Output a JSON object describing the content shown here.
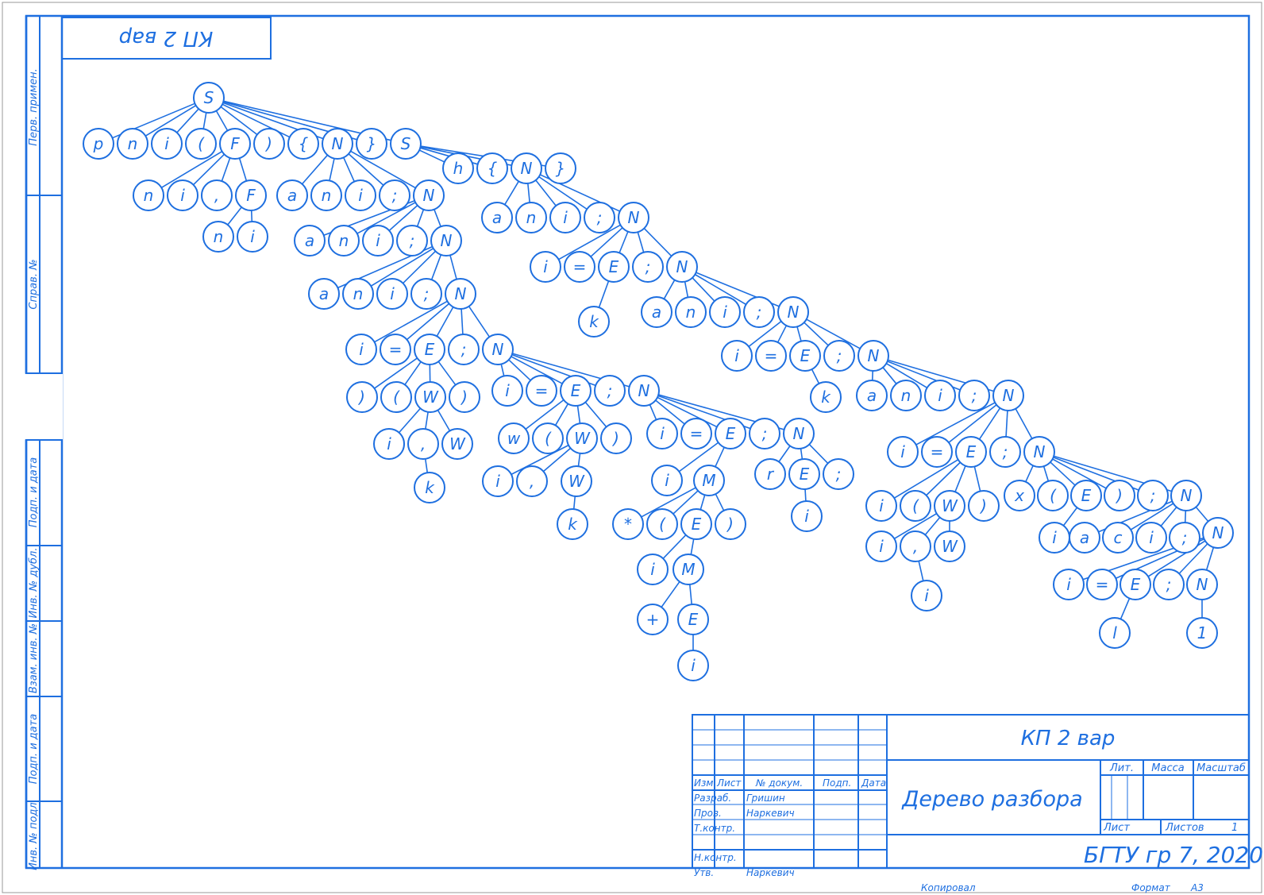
{
  "stamp": "КП 2 вар",
  "side_labels": [
    "Перв. примен.",
    "Справ. №",
    "Подп. и дата",
    "Инв. № дубл.",
    "Взам. инв. №",
    "Подп. и дата",
    "Инв. № подл."
  ],
  "title_block": {
    "doc_code": "КП 2 вар",
    "doc_name": "Дерево разбора",
    "org": "БГТУ гр 7, 2020",
    "col_headers": {
      "izm": "Изм.",
      "list": "Лист",
      "ndoc": "№ докум.",
      "podp": "Подп.",
      "data": "Дата"
    },
    "roles": [
      {
        "role": "Разраб.",
        "name": "Гришин"
      },
      {
        "role": "Пров.",
        "name": "Наркевич"
      },
      {
        "role": "Т.контр.",
        "name": ""
      },
      {
        "role": "",
        "name": ""
      },
      {
        "role": "Н.контр.",
        "name": ""
      },
      {
        "role": "Утв.",
        "name": "Наркевич"
      }
    ],
    "lit": "Лит.",
    "massa": "Масса",
    "masshtab": "Масштаб",
    "list_lbl": "Лист",
    "listov_lbl": "Листов",
    "listov_val": "1",
    "kopiroval": "Копировал",
    "format_lbl": "Формат",
    "format_val": "А3"
  },
  "tree": {
    "nodes": [
      {
        "id": "S0",
        "t": "S"
      },
      {
        "id": "a1",
        "t": "p"
      },
      {
        "id": "a2",
        "t": "n"
      },
      {
        "id": "a3",
        "t": "i"
      },
      {
        "id": "a4",
        "t": "("
      },
      {
        "id": "a5",
        "t": "F"
      },
      {
        "id": "a6",
        "t": ")"
      },
      {
        "id": "a7",
        "t": "{"
      },
      {
        "id": "a8",
        "t": "N"
      },
      {
        "id": "a9",
        "t": "}"
      },
      {
        "id": "a10",
        "t": "S"
      },
      {
        "id": "b1",
        "t": "n"
      },
      {
        "id": "b2",
        "t": "i"
      },
      {
        "id": "b3",
        "t": ","
      },
      {
        "id": "b4",
        "t": "F"
      },
      {
        "id": "b5",
        "t": "n"
      },
      {
        "id": "b6",
        "t": "i"
      },
      {
        "id": "c1",
        "t": "a"
      },
      {
        "id": "c2",
        "t": "n"
      },
      {
        "id": "c3",
        "t": "i"
      },
      {
        "id": "c4",
        "t": ";"
      },
      {
        "id": "c5",
        "t": "N"
      },
      {
        "id": "d1",
        "t": "a"
      },
      {
        "id": "d2",
        "t": "n"
      },
      {
        "id": "d3",
        "t": "i"
      },
      {
        "id": "d4",
        "t": ";"
      },
      {
        "id": "d5",
        "t": "N"
      },
      {
        "id": "e1",
        "t": "a"
      },
      {
        "id": "e2",
        "t": "n"
      },
      {
        "id": "e3",
        "t": "i"
      },
      {
        "id": "e4",
        "t": ";"
      },
      {
        "id": "e5",
        "t": "N"
      },
      {
        "id": "f1",
        "t": "i"
      },
      {
        "id": "f2",
        "t": "="
      },
      {
        "id": "f3",
        "t": "E"
      },
      {
        "id": "f4",
        "t": ";"
      },
      {
        "id": "f5",
        "t": "N"
      },
      {
        "id": "g1",
        "t": ")"
      },
      {
        "id": "g2",
        "t": "("
      },
      {
        "id": "g3",
        "t": "W"
      },
      {
        "id": "g4",
        "t": ")"
      },
      {
        "id": "g5",
        "t": "i"
      },
      {
        "id": "g6",
        "t": ","
      },
      {
        "id": "g7",
        "t": "W"
      },
      {
        "id": "g8",
        "t": "k"
      },
      {
        "id": "h1",
        "t": "i"
      },
      {
        "id": "h2",
        "t": "="
      },
      {
        "id": "h3",
        "t": "E"
      },
      {
        "id": "h4",
        "t": ";"
      },
      {
        "id": "h5",
        "t": "N"
      },
      {
        "id": "i1",
        "t": "w"
      },
      {
        "id": "i2",
        "t": "("
      },
      {
        "id": "i3",
        "t": "W"
      },
      {
        "id": "i4",
        "t": ")"
      },
      {
        "id": "i5",
        "t": "i"
      },
      {
        "id": "i6",
        "t": ","
      },
      {
        "id": "i7",
        "t": "W"
      },
      {
        "id": "i8",
        "t": "k"
      },
      {
        "id": "j1",
        "t": "i"
      },
      {
        "id": "j2",
        "t": "="
      },
      {
        "id": "j3",
        "t": "E"
      },
      {
        "id": "j4",
        "t": ";"
      },
      {
        "id": "j5",
        "t": "N"
      },
      {
        "id": "k1",
        "t": "i"
      },
      {
        "id": "k2",
        "t": "M"
      },
      {
        "id": "k3",
        "t": "*"
      },
      {
        "id": "k4",
        "t": "("
      },
      {
        "id": "k5",
        "t": "E"
      },
      {
        "id": "k6",
        "t": ")"
      },
      {
        "id": "k7",
        "t": "i"
      },
      {
        "id": "k8",
        "t": "M"
      },
      {
        "id": "k9",
        "t": "+"
      },
      {
        "id": "k10",
        "t": "E"
      },
      {
        "id": "k11",
        "t": "i"
      },
      {
        "id": "l1",
        "t": "r"
      },
      {
        "id": "l2",
        "t": "E"
      },
      {
        "id": "l3",
        "t": ";"
      },
      {
        "id": "l4",
        "t": "i"
      },
      {
        "id": "m1",
        "t": "h"
      },
      {
        "id": "m2",
        "t": "{"
      },
      {
        "id": "m3",
        "t": "N"
      },
      {
        "id": "m4",
        "t": "}"
      },
      {
        "id": "n1",
        "t": "a"
      },
      {
        "id": "n2",
        "t": "n"
      },
      {
        "id": "n3",
        "t": "i"
      },
      {
        "id": "n4",
        "t": ";"
      },
      {
        "id": "n5",
        "t": "N"
      },
      {
        "id": "o1",
        "t": "i"
      },
      {
        "id": "o2",
        "t": "="
      },
      {
        "id": "o3",
        "t": "E"
      },
      {
        "id": "o4",
        "t": ";"
      },
      {
        "id": "o5",
        "t": "N"
      },
      {
        "id": "o6",
        "t": "k"
      },
      {
        "id": "p1",
        "t": "a"
      },
      {
        "id": "p2",
        "t": "n"
      },
      {
        "id": "p3",
        "t": "i"
      },
      {
        "id": "p4",
        "t": ";"
      },
      {
        "id": "p5",
        "t": "N"
      },
      {
        "id": "q1",
        "t": "i"
      },
      {
        "id": "q2",
        "t": "="
      },
      {
        "id": "q3",
        "t": "E"
      },
      {
        "id": "q4",
        "t": ";"
      },
      {
        "id": "q5",
        "t": "N"
      },
      {
        "id": "q6",
        "t": "k"
      },
      {
        "id": "r1",
        "t": "a"
      },
      {
        "id": "r2",
        "t": "n"
      },
      {
        "id": "r3",
        "t": "i"
      },
      {
        "id": "r4",
        "t": ";"
      },
      {
        "id": "r5",
        "t": "N"
      },
      {
        "id": "s1",
        "t": "i"
      },
      {
        "id": "s2",
        "t": "="
      },
      {
        "id": "s3",
        "t": "E"
      },
      {
        "id": "s4",
        "t": ";"
      },
      {
        "id": "s5",
        "t": "N"
      },
      {
        "id": "t1",
        "t": "i"
      },
      {
        "id": "t2",
        "t": "("
      },
      {
        "id": "t3",
        "t": "W"
      },
      {
        "id": "t4",
        "t": ")"
      },
      {
        "id": "t5",
        "t": "i"
      },
      {
        "id": "t6",
        "t": ","
      },
      {
        "id": "t7",
        "t": "W"
      },
      {
        "id": "t8",
        "t": "i"
      },
      {
        "id": "u1",
        "t": "x"
      },
      {
        "id": "u2",
        "t": "("
      },
      {
        "id": "u3",
        "t": "E"
      },
      {
        "id": "u4",
        "t": ")"
      },
      {
        "id": "u5",
        "t": ";"
      },
      {
        "id": "u6",
        "t": "N"
      },
      {
        "id": "u7",
        "t": "i"
      },
      {
        "id": "v1",
        "t": "a"
      },
      {
        "id": "v2",
        "t": "c"
      },
      {
        "id": "v3",
        "t": "i"
      },
      {
        "id": "v4",
        "t": ";"
      },
      {
        "id": "v5",
        "t": "N"
      },
      {
        "id": "w1",
        "t": "i"
      },
      {
        "id": "w2",
        "t": "="
      },
      {
        "id": "w3",
        "t": "E"
      },
      {
        "id": "w4",
        "t": ";"
      },
      {
        "id": "w5",
        "t": "N"
      },
      {
        "id": "w6",
        "t": "l"
      },
      {
        "id": "w7",
        "t": "1"
      }
    ],
    "edges": [
      [
        "S0",
        "a1"
      ],
      [
        "S0",
        "a2"
      ],
      [
        "S0",
        "a3"
      ],
      [
        "S0",
        "a4"
      ],
      [
        "S0",
        "a5"
      ],
      [
        "S0",
        "a6"
      ],
      [
        "S0",
        "a7"
      ],
      [
        "S0",
        "a8"
      ],
      [
        "S0",
        "a9"
      ],
      [
        "S0",
        "a10"
      ],
      [
        "a5",
        "b1"
      ],
      [
        "a5",
        "b2"
      ],
      [
        "a5",
        "b3"
      ],
      [
        "a5",
        "b4"
      ],
      [
        "b4",
        "b5"
      ],
      [
        "b4",
        "b6"
      ],
      [
        "a8",
        "c1"
      ],
      [
        "a8",
        "c2"
      ],
      [
        "a8",
        "c3"
      ],
      [
        "a8",
        "c4"
      ],
      [
        "a8",
        "c5"
      ],
      [
        "c5",
        "d1"
      ],
      [
        "c5",
        "d2"
      ],
      [
        "c5",
        "d3"
      ],
      [
        "c5",
        "d4"
      ],
      [
        "c5",
        "d5"
      ],
      [
        "d5",
        "e1"
      ],
      [
        "d5",
        "e2"
      ],
      [
        "d5",
        "e3"
      ],
      [
        "d5",
        "e4"
      ],
      [
        "d5",
        "e5"
      ],
      [
        "e5",
        "f1"
      ],
      [
        "e5",
        "f2"
      ],
      [
        "e5",
        "f3"
      ],
      [
        "e5",
        "f4"
      ],
      [
        "e5",
        "f5"
      ],
      [
        "f3",
        "g1"
      ],
      [
        "f3",
        "g2"
      ],
      [
        "f3",
        "g3"
      ],
      [
        "f3",
        "g4"
      ],
      [
        "g3",
        "g5"
      ],
      [
        "g3",
        "g6"
      ],
      [
        "g3",
        "g7"
      ],
      [
        "g6",
        "g8"
      ],
      [
        "f5",
        "h1"
      ],
      [
        "f5",
        "h2"
      ],
      [
        "f5",
        "h3"
      ],
      [
        "f5",
        "h4"
      ],
      [
        "f5",
        "h5"
      ],
      [
        "h3",
        "i1"
      ],
      [
        "h3",
        "i2"
      ],
      [
        "h3",
        "i3"
      ],
      [
        "h3",
        "i4"
      ],
      [
        "i3",
        "i5"
      ],
      [
        "i3",
        "i6"
      ],
      [
        "i3",
        "i7"
      ],
      [
        "i7",
        "i8"
      ],
      [
        "h5",
        "j1"
      ],
      [
        "h5",
        "j2"
      ],
      [
        "h5",
        "j3"
      ],
      [
        "h5",
        "j4"
      ],
      [
        "h5",
        "j5"
      ],
      [
        "j3",
        "k1"
      ],
      [
        "j3",
        "k2"
      ],
      [
        "k2",
        "k3"
      ],
      [
        "k2",
        "k4"
      ],
      [
        "k2",
        "k5"
      ],
      [
        "k2",
        "k6"
      ],
      [
        "k5",
        "k7"
      ],
      [
        "k5",
        "k8"
      ],
      [
        "k8",
        "k9"
      ],
      [
        "k8",
        "k10"
      ],
      [
        "k10",
        "k11"
      ],
      [
        "j5",
        "l1"
      ],
      [
        "j5",
        "l2"
      ],
      [
        "j5",
        "l3"
      ],
      [
        "l2",
        "l4"
      ],
      [
        "a10",
        "m1"
      ],
      [
        "a10",
        "m2"
      ],
      [
        "a10",
        "m3"
      ],
      [
        "a10",
        "m4"
      ],
      [
        "m3",
        "n1"
      ],
      [
        "m3",
        "n2"
      ],
      [
        "m3",
        "n3"
      ],
      [
        "m3",
        "n4"
      ],
      [
        "m3",
        "n5"
      ],
      [
        "n5",
        "o1"
      ],
      [
        "n5",
        "o2"
      ],
      [
        "n5",
        "o3"
      ],
      [
        "n5",
        "o4"
      ],
      [
        "n5",
        "o5"
      ],
      [
        "o3",
        "o6"
      ],
      [
        "o5",
        "p1"
      ],
      [
        "o5",
        "p2"
      ],
      [
        "o5",
        "p3"
      ],
      [
        "o5",
        "p4"
      ],
      [
        "o5",
        "p5"
      ],
      [
        "p5",
        "q1"
      ],
      [
        "p5",
        "q2"
      ],
      [
        "p5",
        "q3"
      ],
      [
        "p5",
        "q4"
      ],
      [
        "p5",
        "q5"
      ],
      [
        "q3",
        "q6"
      ],
      [
        "q5",
        "r1"
      ],
      [
        "q5",
        "r2"
      ],
      [
        "q5",
        "r3"
      ],
      [
        "q5",
        "r4"
      ],
      [
        "q5",
        "r5"
      ],
      [
        "r5",
        "s1"
      ],
      [
        "r5",
        "s2"
      ],
      [
        "r5",
        "s3"
      ],
      [
        "r5",
        "s4"
      ],
      [
        "r5",
        "s5"
      ],
      [
        "s3",
        "t1"
      ],
      [
        "s3",
        "t2"
      ],
      [
        "s3",
        "t3"
      ],
      [
        "s3",
        "t4"
      ],
      [
        "t3",
        "t5"
      ],
      [
        "t3",
        "t6"
      ],
      [
        "t3",
        "t7"
      ],
      [
        "t6",
        "t8"
      ],
      [
        "s5",
        "u1"
      ],
      [
        "s5",
        "u2"
      ],
      [
        "s5",
        "u3"
      ],
      [
        "s5",
        "u4"
      ],
      [
        "s5",
        "u5"
      ],
      [
        "s5",
        "u6"
      ],
      [
        "u3",
        "u7"
      ],
      [
        "u6",
        "v1"
      ],
      [
        "u6",
        "v2"
      ],
      [
        "u6",
        "v3"
      ],
      [
        "u6",
        "v4"
      ],
      [
        "u6",
        "v5"
      ],
      [
        "v5",
        "w1"
      ],
      [
        "v5",
        "w2"
      ],
      [
        "v5",
        "w3"
      ],
      [
        "v5",
        "w4"
      ],
      [
        "v5",
        "w5"
      ],
      [
        "w3",
        "w6"
      ],
      [
        "w5",
        "w7"
      ]
    ]
  }
}
